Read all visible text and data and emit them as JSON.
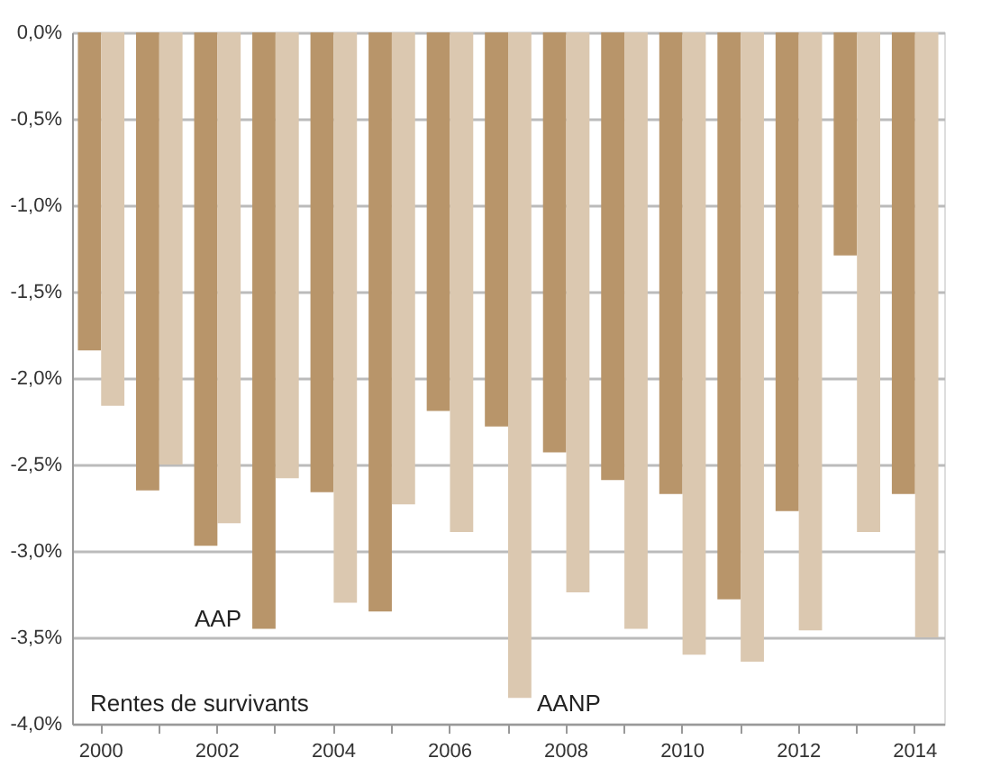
{
  "chart_data": {
    "type": "bar",
    "categories": [
      "2000",
      null,
      "2002",
      null,
      "2004",
      null,
      "2006",
      null,
      "2008",
      null,
      "2010",
      null,
      "2012",
      null,
      "2014"
    ],
    "series": [
      {
        "name": "AAP",
        "color": "#b8956a",
        "values": [
          -1.84,
          -2.65,
          -2.97,
          -3.45,
          -2.66,
          -3.35,
          -2.19,
          -2.28,
          -2.43,
          -2.59,
          -2.67,
          -3.28,
          -2.77,
          -1.29,
          -2.67
        ]
      },
      {
        "name": "AANP",
        "color": "#dbc8b0",
        "values": [
          -2.16,
          -2.5,
          -2.84,
          -2.58,
          -3.3,
          -2.73,
          -2.89,
          -3.85,
          -3.24,
          -3.45,
          -3.6,
          -3.64,
          -3.46,
          -2.89,
          -3.5
        ]
      }
    ],
    "ylim": [
      -4,
      0
    ],
    "yticks": [
      {
        "value": 0,
        "label": "0,0%"
      },
      {
        "value": -0.5,
        "label": "-0,5%"
      },
      {
        "value": -1,
        "label": "-1,0%"
      },
      {
        "value": -1.5,
        "label": "-1,5%"
      },
      {
        "value": -2,
        "label": "-2,0%"
      },
      {
        "value": -2.5,
        "label": "-2,5%"
      },
      {
        "value": -3,
        "label": "-3,0%"
      },
      {
        "value": -3.5,
        "label": "-3,5%"
      },
      {
        "value": -4,
        "label": "-4,0%"
      }
    ],
    "annotations": [
      "Rentes de survivants"
    ],
    "grid": "y",
    "legend": false
  }
}
